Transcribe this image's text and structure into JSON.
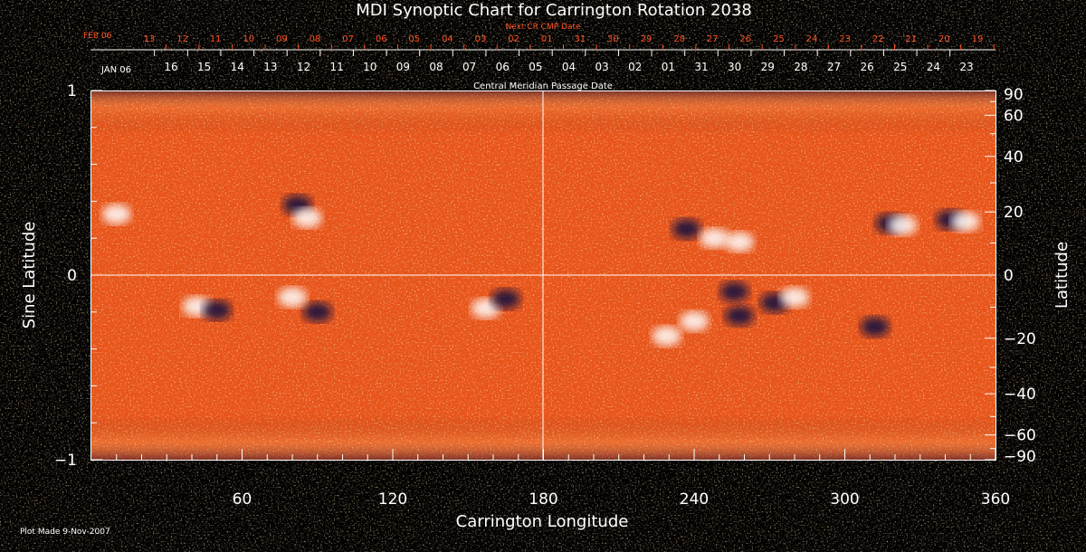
{
  "chart_data": {
    "type": "heatmap",
    "title": "MDI Synoptic Chart for Carrington Rotation 2038",
    "xlabel": "Carrington Longitude",
    "ylabel_left": "Sine Latitude",
    "ylabel_right": "Latitude",
    "xlim": [
      0,
      360
    ],
    "ylim": [
      -1,
      1
    ],
    "x_ticks": [
      60,
      120,
      180,
      240,
      300,
      360
    ],
    "y_left_ticks": [
      1,
      0,
      -1
    ],
    "y_right_ticks": [
      90,
      60,
      40,
      20,
      0,
      -20,
      -40,
      -60,
      -90
    ],
    "grid": "lines at longitude 180 and sine latitude 0",
    "top_axis_next_cr": {
      "title": "Next CR CMP Date",
      "start_label": "FEB 06",
      "dates": [
        "13",
        "12",
        "11",
        "10",
        "09",
        "08",
        "07",
        "06",
        "05",
        "04",
        "03",
        "02",
        "01",
        "31",
        "30",
        "29",
        "28",
        "27",
        "26",
        "25",
        "24",
        "23",
        "22",
        "21",
        "20",
        "19"
      ]
    },
    "top_axis_current": {
      "title": "Central Meridian Passage Date",
      "start_label": "JAN 06",
      "dates": [
        "16",
        "15",
        "14",
        "13",
        "12",
        "11",
        "10",
        "09",
        "08",
        "07",
        "06",
        "05",
        "04",
        "03",
        "02",
        "01",
        "31",
        "30",
        "29",
        "28",
        "27",
        "26",
        "25",
        "24",
        "23"
      ]
    },
    "active_regions": [
      {
        "lon": 10,
        "sinlat": 0.33,
        "polarity": "positive"
      },
      {
        "lon": 82,
        "sinlat": 0.38,
        "polarity": "negative"
      },
      {
        "lon": 86,
        "sinlat": 0.31,
        "polarity": "positive"
      },
      {
        "lon": 42,
        "sinlat": -0.17,
        "polarity": "positive"
      },
      {
        "lon": 50,
        "sinlat": -0.19,
        "polarity": "negative"
      },
      {
        "lon": 90,
        "sinlat": -0.2,
        "polarity": "negative"
      },
      {
        "lon": 80,
        "sinlat": -0.12,
        "polarity": "positive"
      },
      {
        "lon": 157,
        "sinlat": -0.18,
        "polarity": "positive"
      },
      {
        "lon": 165,
        "sinlat": -0.13,
        "polarity": "negative"
      },
      {
        "lon": 237,
        "sinlat": 0.25,
        "polarity": "negative"
      },
      {
        "lon": 248,
        "sinlat": 0.2,
        "polarity": "positive"
      },
      {
        "lon": 258,
        "sinlat": 0.18,
        "polarity": "positive"
      },
      {
        "lon": 256,
        "sinlat": -0.09,
        "polarity": "negative"
      },
      {
        "lon": 240,
        "sinlat": -0.25,
        "polarity": "positive"
      },
      {
        "lon": 258,
        "sinlat": -0.22,
        "polarity": "negative"
      },
      {
        "lon": 229,
        "sinlat": -0.33,
        "polarity": "positive"
      },
      {
        "lon": 272,
        "sinlat": -0.15,
        "polarity": "negative"
      },
      {
        "lon": 280,
        "sinlat": -0.12,
        "polarity": "positive"
      },
      {
        "lon": 318,
        "sinlat": 0.28,
        "polarity": "negative"
      },
      {
        "lon": 323,
        "sinlat": 0.27,
        "polarity": "positive"
      },
      {
        "lon": 312,
        "sinlat": -0.28,
        "polarity": "negative"
      },
      {
        "lon": 342,
        "sinlat": 0.3,
        "polarity": "negative"
      },
      {
        "lon": 348,
        "sinlat": 0.29,
        "polarity": "positive"
      }
    ]
  },
  "footer": {
    "plot_made": "Plot Made  9-Nov-2007"
  },
  "colors": {
    "background": "#000000",
    "field_base": "#e8541a",
    "positive": "#ffffff",
    "negative": "#0a0a40",
    "top_axis_next": "#ff4a1a",
    "axis": "#ffffff"
  }
}
